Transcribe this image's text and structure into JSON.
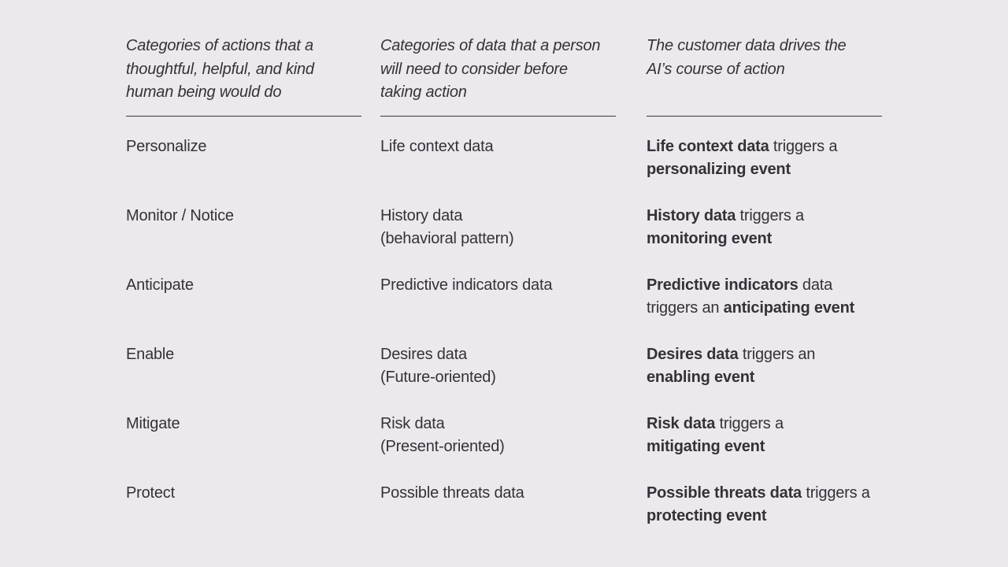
{
  "headers": {
    "col1": [
      "Categories of actions that a",
      "thoughtful, helpful, and kind",
      "human being would do"
    ],
    "col2": [
      "Categories of data that a person",
      "will need to consider before",
      "taking action"
    ],
    "col3": [
      "The customer data  drives the",
      "AI’s course of action"
    ]
  },
  "actions": [
    "Personalize",
    "Monitor / Notice",
    "Anticipate",
    "Enable",
    "Mitigate",
    "Protect"
  ],
  "data_categories": [
    [
      "Life context data"
    ],
    [
      "History data",
      "(behavioral pattern)"
    ],
    [
      "Predictive indicators data"
    ],
    [
      "Desires  data",
      "(Future-oriented)"
    ],
    [
      "Risk data",
      "(Present-oriented)"
    ],
    [
      "Possible  threats data"
    ]
  ],
  "triggers": [
    {
      "line1": [
        {
          "text": "Life context data",
          "bold": true
        },
        {
          "text": " triggers a",
          "bold": false
        }
      ],
      "line2": [
        {
          "text": "personalizing event",
          "bold": true
        }
      ]
    },
    {
      "line1": [
        {
          "text": "History data",
          "bold": true
        },
        {
          "text": " triggers a",
          "bold": false
        }
      ],
      "line2": [
        {
          "text": "monitoring event",
          "bold": true
        }
      ]
    },
    {
      "line1": [
        {
          "text": "Predictive indicators",
          "bold": true
        },
        {
          "text": " data",
          "bold": false
        }
      ],
      "line2": [
        {
          "text": "triggers an ",
          "bold": false
        },
        {
          "text": "anticipating event",
          "bold": true
        }
      ]
    },
    {
      "line1": [
        {
          "text": "Desires data",
          "bold": true
        },
        {
          "text": " triggers an",
          "bold": false
        }
      ],
      "line2": [
        {
          "text": "enabling event",
          "bold": true
        }
      ]
    },
    {
      "line1": [
        {
          "text": "Risk data",
          "bold": true
        },
        {
          "text": " triggers a",
          "bold": false
        }
      ],
      "line2": [
        {
          "text": "mitigating event",
          "bold": true
        }
      ]
    },
    {
      "line1": [
        {
          "text": "Possible threats data",
          "bold": true
        },
        {
          "text": " triggers a",
          "bold": false
        }
      ],
      "line2": [
        {
          "text": "protecting event",
          "bold": true
        }
      ]
    }
  ]
}
